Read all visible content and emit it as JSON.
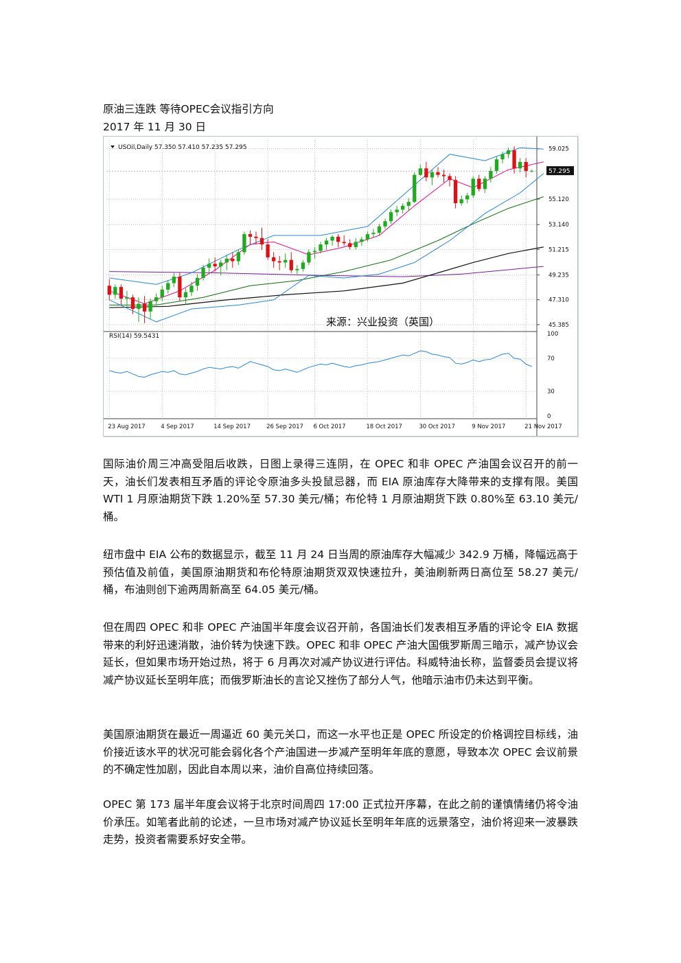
{
  "article": {
    "title": "原油三连跌  等待OPEC会议指引方向",
    "date": "2017 年 11 月 30 日",
    "paragraphs": [
      "国际油价周三冲高受阻后收跌，日图上录得三连阴，在 OPEC 和非 OPEC 产油国会议召开的前一天，油长们发表相互矛盾的评论令原油多头投鼠忌器，而 EIA 原油库存大降带来的支撑有限。美国 WTI 1 月原油期货下跌 1.20%至 57.30 美元/桶；布伦特 1 月原油期货下跌 0.80%至 63.10 美元/桶。",
      "纽市盘中 EIA 公布的数据显示，截至 11 月 24 日当周的原油库存大幅减少 342.9 万桶，降幅远高于预估值及前值，美国原油期货和布伦特原油期货双双快速拉升，美油刷新两日高位至 58.27 美元/桶，布油则创下逾两周新高至 64.05 美元/桶。",
      "但在周四 OPEC 和非 OPEC 产油国半年度会议召开前，各国油长们发表相互矛盾的评论令 EIA 数据带来的利好迅速消散，油价转为快速下跌。OPEC 和非 OPEC 产油大国俄罗斯周三暗示，减产协议会延长，但如果市场开始过热，将于 6 月再次对减产协议进行评估。科威特油长称，监督委员会提议将减产协议延长至明年底；而俄罗斯油长的言论又挫伤了部分人气，他暗示油市仍未达到平衡。",
      "美国原油期货在最近一周逼近 60 美元关口，而这一水平也正是 OPEC 所设定的价格调控目标线，油价接近该水平的状况可能会弱化各个产油国进一步减产至明年年底的意愿，导致本次 OPEC 会议前景的不确定性加剧，因此自本周以来，油价自高位持续回落。",
      "OPEC 第 173 届半年度会议将于北京时间周四 17:00 正式拉开序幕，在此之前的谨慎情绪仍将令油价承压。如笔者此前的论述，一旦市场对减产协议延长至明年年底的远景落空，油价将迎来一波暴跌走势，投资者需要系好安全带。"
    ]
  },
  "chart_data": {
    "type": "candlestick",
    "header": "USOil,Daily  57.350 57.410 57.235 57.295",
    "current_price_label": "57.295",
    "current_price": 57.295,
    "watermark": "来源：兴业投资（英国）",
    "price_axis_ticks": [
      "59.025",
      "57.295",
      "55.120",
      "53.140",
      "51.215",
      "49.235",
      "47.310",
      "45.385"
    ],
    "price_axis_values": [
      59.025,
      57.295,
      55.12,
      53.14,
      51.215,
      49.235,
      47.31,
      45.385
    ],
    "ylim": [
      44.9,
      59.7
    ],
    "date_ticks": [
      "23 Aug 2017",
      "4 Sep 2017",
      "14 Sep 2017",
      "26 Sep 2017",
      "6 Oct 2017",
      "18 Oct 2017",
      "30 Oct 2017",
      "9 Nov 2017",
      "21 Nov 2017"
    ],
    "date_tick_bars": [
      0,
      9,
      18,
      27,
      35,
      44,
      53,
      62,
      71
    ],
    "colors": {
      "bull": "#1faa1f",
      "bear": "#dd1111",
      "bollinger": "#2a85d8",
      "ma_short": "#e0108c",
      "ma_mid": "#0c6e0c",
      "ma_long": "#111111",
      "ma_flat": "#7a1a9a",
      "rsi": "#2a85d8"
    },
    "candles": [
      [
        48.4,
        48.9,
        47.3,
        47.7
      ],
      [
        47.7,
        48.5,
        47.4,
        48.3
      ],
      [
        48.3,
        48.5,
        46.9,
        47.4
      ],
      [
        47.4,
        48.0,
        46.8,
        47.5
      ],
      [
        47.5,
        47.7,
        46.2,
        46.6
      ],
      [
        46.6,
        47.5,
        45.6,
        47.0
      ],
      [
        47.0,
        47.6,
        45.5,
        46.4
      ],
      [
        46.4,
        47.4,
        45.8,
        47.2
      ],
      [
        47.2,
        47.8,
        46.9,
        47.5
      ],
      [
        47.5,
        48.4,
        47.2,
        48.1
      ],
      [
        48.1,
        48.8,
        47.8,
        48.6
      ],
      [
        48.6,
        49.4,
        48.3,
        49.1
      ],
      [
        49.1,
        49.4,
        47.2,
        47.5
      ],
      [
        47.5,
        48.2,
        46.9,
        47.9
      ],
      [
        47.9,
        48.7,
        47.6,
        48.4
      ],
      [
        48.4,
        49.3,
        48.0,
        49.0
      ],
      [
        49.0,
        50.0,
        48.8,
        49.8
      ],
      [
        49.8,
        50.5,
        49.3,
        50.1
      ],
      [
        50.1,
        50.6,
        49.5,
        49.9
      ],
      [
        49.9,
        50.4,
        49.2,
        50.2
      ],
      [
        50.2,
        50.8,
        49.6,
        50.5
      ],
      [
        50.5,
        51.0,
        49.8,
        50.3
      ],
      [
        50.3,
        51.2,
        50.0,
        51.0
      ],
      [
        51.0,
        52.6,
        50.8,
        52.4
      ],
      [
        52.4,
        52.7,
        51.6,
        52.2
      ],
      [
        52.2,
        52.6,
        51.6,
        52.1
      ],
      [
        52.1,
        52.9,
        51.2,
        51.6
      ],
      [
        51.6,
        52.0,
        50.4,
        50.6
      ],
      [
        50.6,
        51.0,
        49.8,
        50.3
      ],
      [
        50.3,
        50.7,
        49.6,
        50.2
      ],
      [
        50.2,
        50.9,
        49.8,
        50.4
      ],
      [
        50.4,
        51.0,
        49.4,
        49.6
      ],
      [
        49.6,
        50.0,
        49.3,
        49.7
      ],
      [
        49.7,
        50.4,
        49.5,
        50.2
      ],
      [
        50.2,
        51.2,
        50.0,
        51.0
      ],
      [
        51.0,
        51.4,
        50.5,
        51.1
      ],
      [
        51.1,
        51.8,
        50.9,
        51.6
      ],
      [
        51.6,
        52.1,
        51.2,
        51.9
      ],
      [
        51.9,
        52.3,
        51.5,
        52.2
      ],
      [
        52.2,
        52.4,
        51.4,
        51.8
      ],
      [
        51.8,
        52.3,
        51.5,
        51.7
      ],
      [
        51.7,
        52.0,
        51.2,
        51.4
      ],
      [
        51.4,
        52.1,
        51.2,
        51.8
      ],
      [
        51.8,
        52.2,
        51.5,
        52.0
      ],
      [
        52.0,
        52.6,
        51.8,
        52.4
      ],
      [
        52.4,
        52.8,
        52.1,
        52.5
      ],
      [
        52.5,
        53.2,
        52.3,
        53.0
      ],
      [
        53.0,
        53.6,
        52.8,
        53.4
      ],
      [
        53.4,
        54.3,
        53.2,
        54.1
      ],
      [
        54.1,
        54.6,
        53.8,
        54.3
      ],
      [
        54.3,
        54.8,
        54.0,
        54.6
      ],
      [
        54.6,
        55.2,
        54.2,
        54.9
      ],
      [
        54.9,
        57.2,
        54.8,
        57.0
      ],
      [
        57.0,
        57.8,
        56.9,
        57.5
      ],
      [
        57.5,
        58.0,
        56.5,
        56.8
      ],
      [
        56.8,
        57.4,
        56.2,
        57.2
      ],
      [
        57.2,
        57.6,
        56.8,
        57.0
      ],
      [
        57.0,
        57.4,
        56.4,
        56.9
      ],
      [
        56.9,
        57.1,
        56.1,
        56.6
      ],
      [
        56.6,
        56.9,
        54.4,
        54.8
      ],
      [
        54.8,
        55.4,
        54.6,
        55.1
      ],
      [
        55.1,
        55.6,
        54.8,
        55.4
      ],
      [
        55.4,
        56.9,
        55.2,
        56.7
      ],
      [
        56.7,
        57.0,
        55.7,
        55.9
      ],
      [
        55.9,
        56.9,
        55.6,
        56.7
      ],
      [
        56.7,
        57.6,
        56.4,
        57.3
      ],
      [
        57.3,
        58.4,
        57.1,
        58.2
      ],
      [
        58.2,
        58.8,
        57.9,
        58.6
      ],
      [
        58.6,
        59.1,
        58.3,
        58.9
      ],
      [
        58.9,
        59.2,
        57.1,
        57.5
      ],
      [
        57.5,
        58.3,
        57.2,
        58.0
      ],
      [
        58.0,
        58.3,
        56.8,
        57.3
      ],
      [
        57.3,
        57.4,
        57.2,
        57.3
      ]
    ],
    "bollinger_upper": [
      [
        0,
        49.0
      ],
      [
        8,
        48.5
      ],
      [
        14,
        49.4
      ],
      [
        22,
        51.2
      ],
      [
        28,
        52.3
      ],
      [
        36,
        52.3
      ],
      [
        44,
        53.0
      ],
      [
        52,
        56.2
      ],
      [
        58,
        58.6
      ],
      [
        64,
        58.1
      ],
      [
        70,
        59.1
      ],
      [
        74,
        59.0
      ]
    ],
    "bollinger_lower": [
      [
        0,
        47.3
      ],
      [
        8,
        45.6
      ],
      [
        14,
        46.6
      ],
      [
        22,
        46.9
      ],
      [
        28,
        47.3
      ],
      [
        34,
        49.2
      ],
      [
        40,
        49.0
      ],
      [
        46,
        49.3
      ],
      [
        52,
        50.2
      ],
      [
        58,
        51.9
      ],
      [
        64,
        54.0
      ],
      [
        70,
        55.6
      ],
      [
        74,
        57.1
      ]
    ],
    "ma_short": [
      [
        0,
        48.0
      ],
      [
        6,
        47.0
      ],
      [
        12,
        48.0
      ],
      [
        18,
        49.6
      ],
      [
        24,
        51.6
      ],
      [
        28,
        51.8
      ],
      [
        34,
        50.8
      ],
      [
        40,
        51.4
      ],
      [
        46,
        52.3
      ],
      [
        52,
        54.6
      ],
      [
        58,
        56.7
      ],
      [
        62,
        56.0
      ],
      [
        68,
        57.4
      ],
      [
        74,
        58.0
      ]
    ],
    "ma_mid": [
      [
        0,
        46.9
      ],
      [
        8,
        46.9
      ],
      [
        16,
        47.5
      ],
      [
        24,
        48.4
      ],
      [
        32,
        48.8
      ],
      [
        40,
        49.5
      ],
      [
        48,
        50.4
      ],
      [
        56,
        51.9
      ],
      [
        62,
        53.2
      ],
      [
        68,
        54.4
      ],
      [
        74,
        55.3
      ]
    ],
    "ma_long": [
      [
        0,
        46.7
      ],
      [
        10,
        46.8
      ],
      [
        20,
        47.3
      ],
      [
        30,
        47.7
      ],
      [
        40,
        48.0
      ],
      [
        50,
        48.6
      ],
      [
        56,
        49.4
      ],
      [
        62,
        50.2
      ],
      [
        68,
        50.9
      ],
      [
        74,
        51.4
      ]
    ],
    "ma_flat": [
      [
        0,
        49.5
      ],
      [
        18,
        49.4
      ],
      [
        36,
        49.2
      ],
      [
        50,
        49.1
      ],
      [
        60,
        49.3
      ],
      [
        74,
        49.9
      ]
    ],
    "rsi": {
      "label": "RSI(14) 59.5431",
      "value": 59.5431,
      "ylim": [
        0,
        100
      ],
      "ticks": [
        "100",
        "70",
        "30",
        "0"
      ],
      "tick_values": [
        100,
        70,
        30,
        0
      ],
      "series": [
        55,
        53,
        52,
        54,
        51,
        48,
        47,
        50,
        52,
        54,
        53,
        55,
        51,
        50,
        52,
        54,
        57,
        59,
        58,
        57,
        59,
        60,
        58,
        62,
        66,
        64,
        62,
        60,
        56,
        55,
        57,
        55,
        53,
        56,
        59,
        61,
        63,
        62,
        64,
        62,
        60,
        59,
        61,
        62,
        64,
        65,
        66,
        68,
        70,
        72,
        74,
        73,
        76,
        79,
        78,
        75,
        74,
        72,
        71,
        64,
        63,
        65,
        68,
        66,
        68,
        69,
        72,
        75,
        76,
        70,
        69,
        63,
        60
      ]
    }
  }
}
